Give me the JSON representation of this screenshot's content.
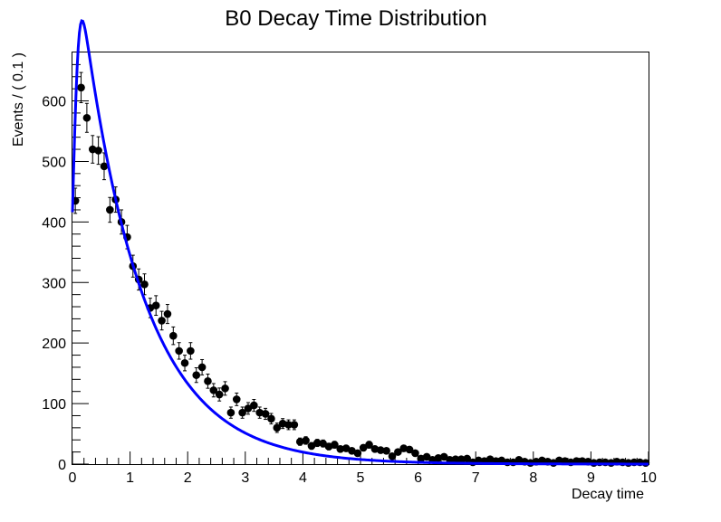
{
  "chart_data": {
    "type": "scatter",
    "title": "B0 Decay Time Distribution",
    "xlabel": "Decay time",
    "ylabel": "Events / ( 0.1 )",
    "xlim": [
      0,
      10
    ],
    "ylim": [
      0,
      680
    ],
    "x_ticks": [
      0,
      1,
      2,
      3,
      4,
      5,
      6,
      7,
      8,
      9,
      10
    ],
    "y_ticks": [
      0,
      100,
      200,
      300,
      400,
      500,
      600
    ],
    "grid": false,
    "colors": {
      "data": "#000000",
      "fit": "#0000ff"
    },
    "series": [
      {
        "kind": "points_with_errors",
        "x": [
          0.05,
          0.15,
          0.25,
          0.35,
          0.45,
          0.55,
          0.65,
          0.75,
          0.85,
          0.95,
          1.05,
          1.15,
          1.25,
          1.35,
          1.45,
          1.55,
          1.65,
          1.75,
          1.85,
          1.95,
          2.05,
          2.15,
          2.25,
          2.35,
          2.45,
          2.55,
          2.65,
          2.75,
          2.85,
          2.95,
          3.05,
          3.15,
          3.25,
          3.35,
          3.45,
          3.55,
          3.65,
          3.75,
          3.85,
          3.95,
          4.05,
          4.15,
          4.25,
          4.35,
          4.45,
          4.55,
          4.65,
          4.75,
          4.85,
          4.95,
          5.05,
          5.15,
          5.25,
          5.35,
          5.45,
          5.55,
          5.65,
          5.75,
          5.85,
          5.95,
          6.05,
          6.15,
          6.25,
          6.35,
          6.45,
          6.55,
          6.65,
          6.75,
          6.85,
          6.95,
          7.05,
          7.15,
          7.25,
          7.35,
          7.45,
          7.55,
          7.65,
          7.75,
          7.85,
          7.95,
          8.05,
          8.15,
          8.25,
          8.35,
          8.45,
          8.55,
          8.65,
          8.75,
          8.85,
          8.95,
          9.05,
          9.15,
          9.25,
          9.35,
          9.45,
          9.55,
          9.65,
          9.75,
          9.85,
          9.95
        ],
        "y": [
          435,
          622,
          572,
          520,
          518,
          492,
          420,
          437,
          400,
          375,
          327,
          305,
          297,
          258,
          262,
          237,
          248,
          212,
          187,
          167,
          187,
          147,
          160,
          137,
          122,
          115,
          125,
          85,
          107,
          85,
          92,
          97,
          85,
          83,
          75,
          60,
          67,
          65,
          65,
          37,
          39,
          30,
          35,
          34,
          29,
          32,
          25,
          26,
          22,
          18,
          27,
          32,
          25,
          23,
          22,
          13,
          20,
          26,
          24,
          18,
          9,
          12,
          7,
          10,
          12,
          7,
          8,
          8,
          9,
          3,
          6,
          5,
          8,
          5,
          6,
          3,
          3,
          7,
          4,
          2,
          4,
          6,
          4,
          2,
          6,
          5,
          3,
          5,
          5,
          4,
          2,
          3,
          3,
          2,
          4,
          3,
          2,
          3,
          3,
          2
        ]
      },
      {
        "kind": "fit_curve",
        "model": {
          "tau": 1.05,
          "amplitude": 890,
          "sigma": 0.09,
          "mu": 0.0
        }
      }
    ]
  }
}
